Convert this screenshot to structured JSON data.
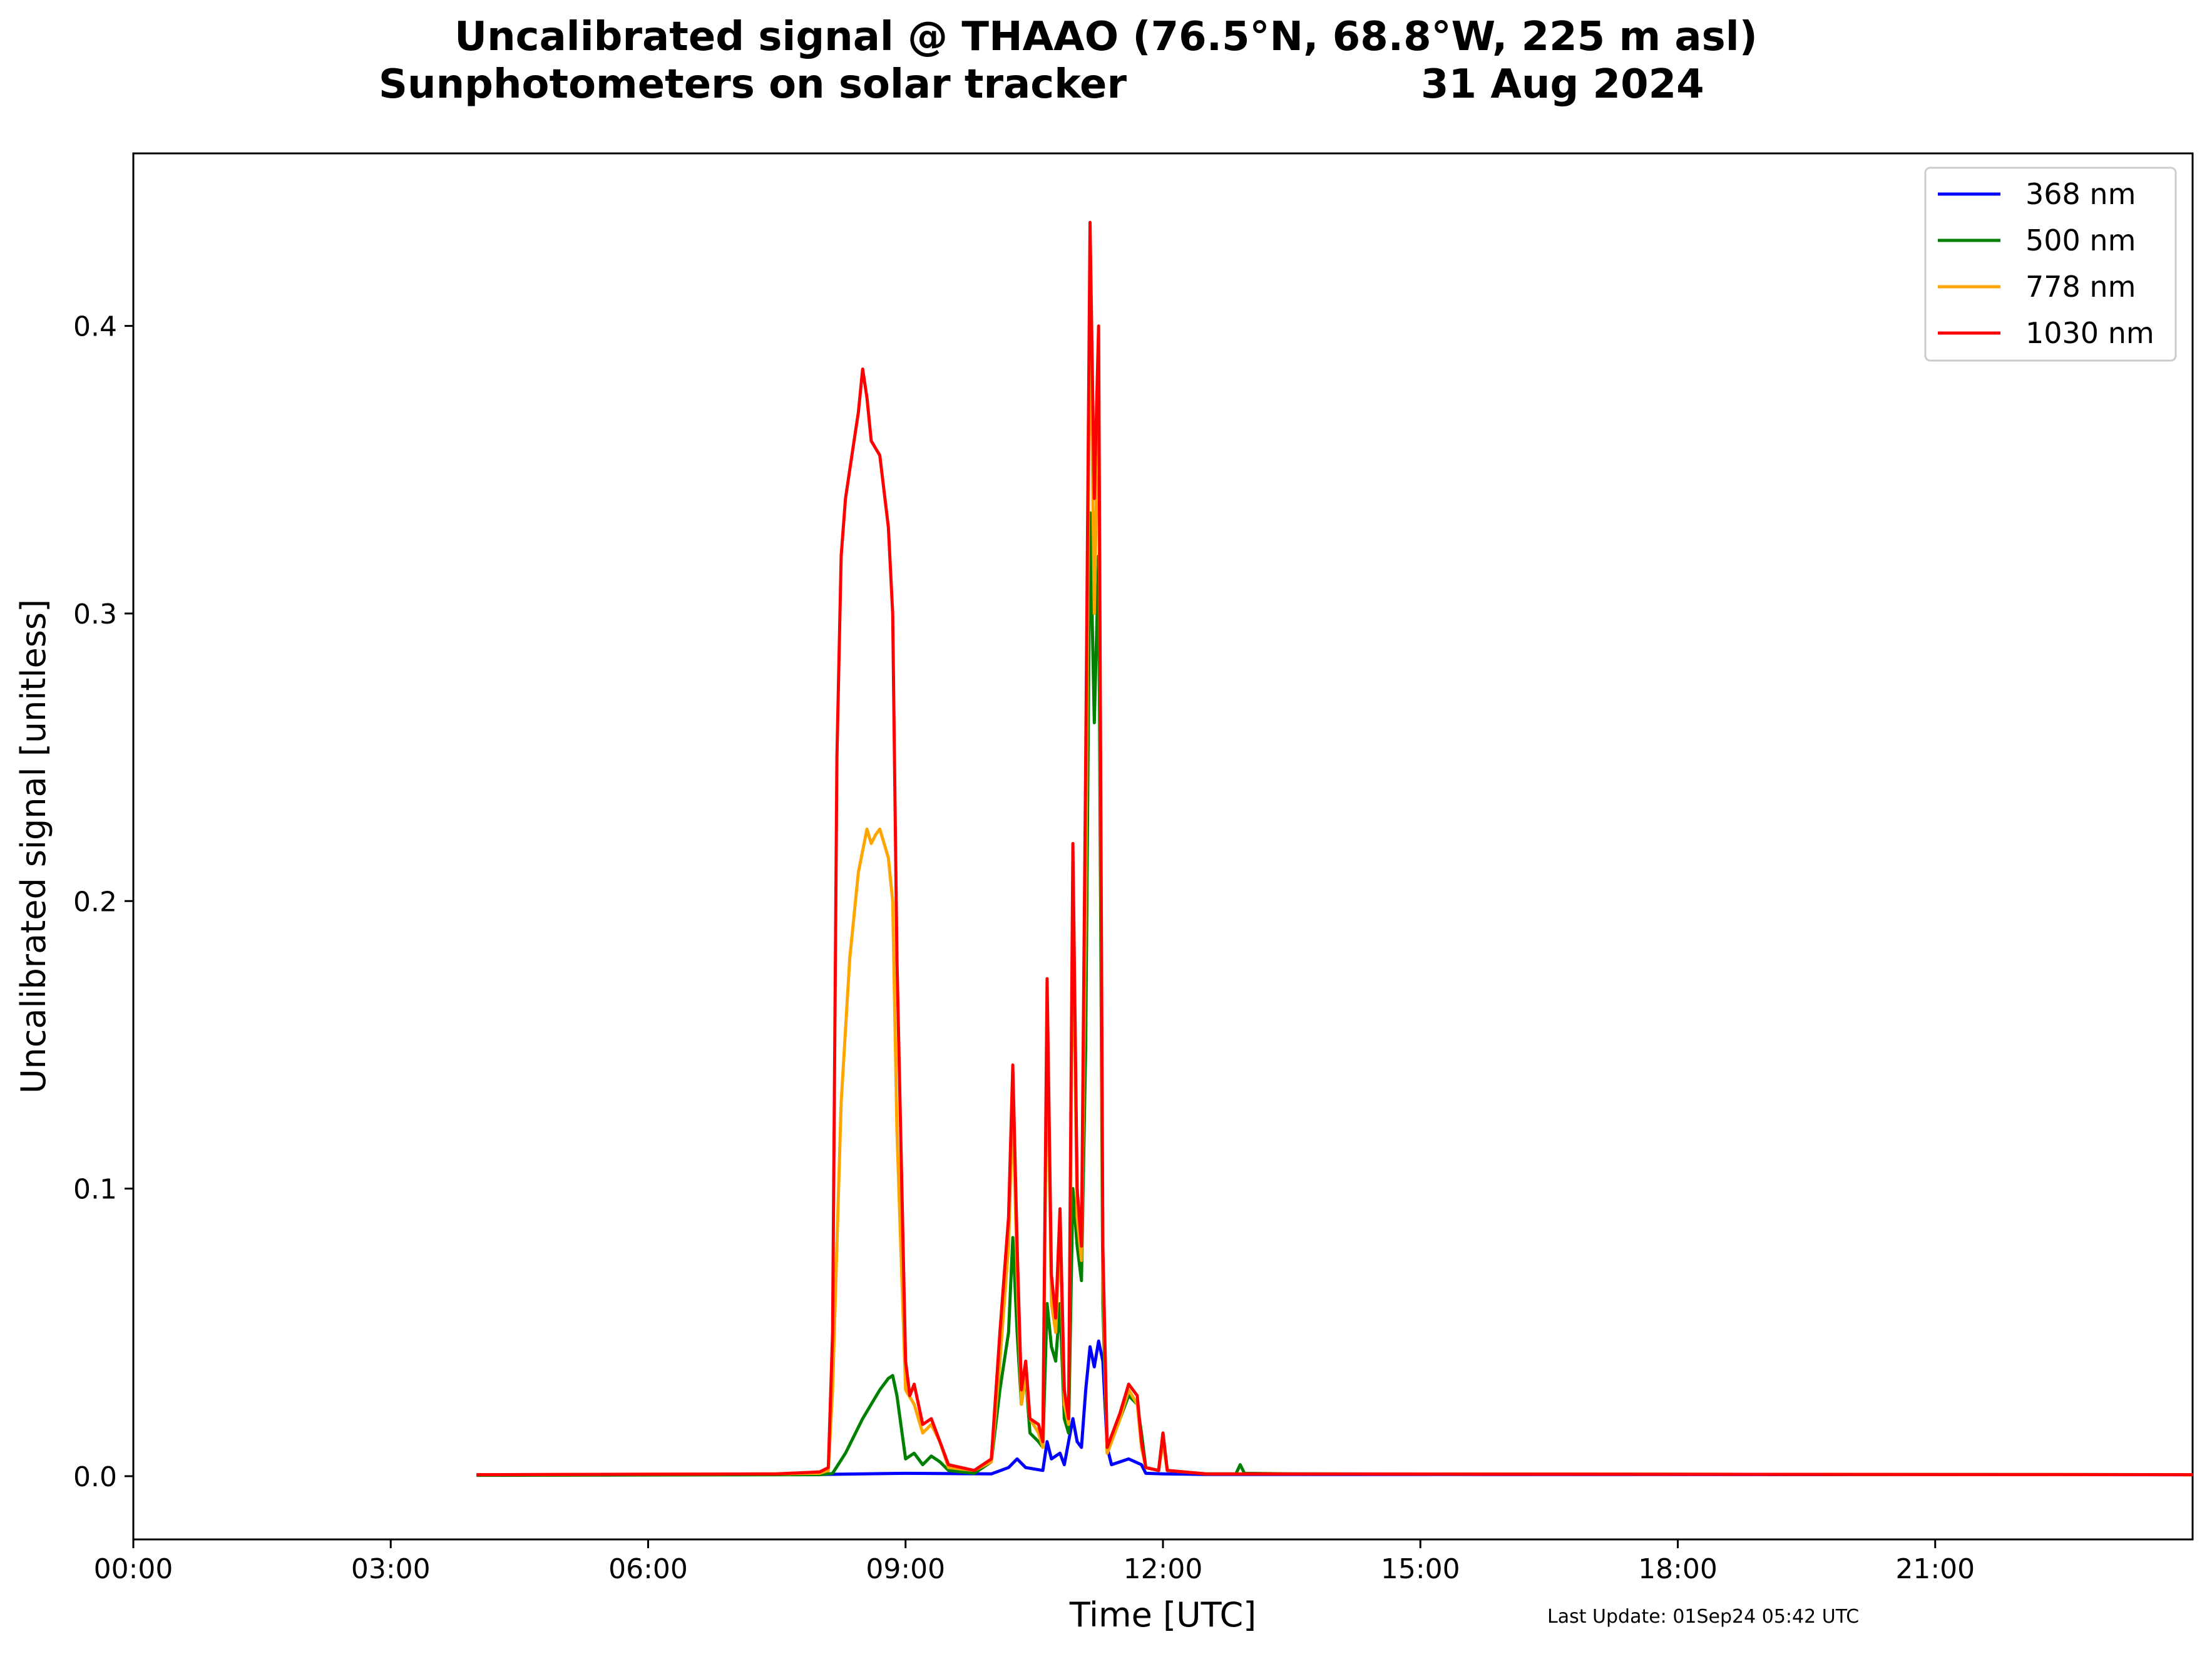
{
  "chart_data": {
    "type": "line",
    "title_line1": "Uncalibrated signal @ THAAO (76.5°N, 68.8°W, 225 m asl)",
    "title_line2_left": "Sunphotometers on solar tracker",
    "title_line2_right": "31 Aug 2024",
    "xlabel": "Time [UTC]",
    "ylabel": "Uncalibrated signal [unitless]",
    "footer": "Last Update: 01Sep24 05:42 UTC",
    "xlim": [
      0,
      24
    ],
    "ylim": [
      -0.022,
      0.46
    ],
    "x_ticks": [
      0,
      3,
      6,
      9,
      12,
      15,
      18,
      21
    ],
    "x_tick_labels": [
      "00:00",
      "03:00",
      "06:00",
      "09:00",
      "12:00",
      "15:00",
      "18:00",
      "21:00"
    ],
    "y_ticks": [
      0.0,
      0.1,
      0.2,
      0.3,
      0.4
    ],
    "y_tick_labels": [
      "0.0",
      "0.1",
      "0.2",
      "0.3",
      "0.4"
    ],
    "grid": false,
    "legend_position": "top-right",
    "series": [
      {
        "name": "368 nm",
        "color": "#0000ff",
        "points": [
          [
            4.0,
            0.0005
          ],
          [
            8.0,
            0.0006
          ],
          [
            9.0,
            0.001
          ],
          [
            10.0,
            0.0008
          ],
          [
            10.2,
            0.003
          ],
          [
            10.3,
            0.006
          ],
          [
            10.4,
            0.003
          ],
          [
            10.6,
            0.002
          ],
          [
            10.65,
            0.012
          ],
          [
            10.7,
            0.006
          ],
          [
            10.8,
            0.008
          ],
          [
            10.85,
            0.004
          ],
          [
            10.95,
            0.02
          ],
          [
            11.0,
            0.012
          ],
          [
            11.05,
            0.01
          ],
          [
            11.1,
            0.03
          ],
          [
            11.15,
            0.045
          ],
          [
            11.2,
            0.038
          ],
          [
            11.25,
            0.047
          ],
          [
            11.3,
            0.04
          ],
          [
            11.35,
            0.01
          ],
          [
            11.4,
            0.004
          ],
          [
            11.5,
            0.005
          ],
          [
            11.6,
            0.006
          ],
          [
            11.75,
            0.004
          ],
          [
            11.8,
            0.001
          ],
          [
            12.0,
            0.0008
          ],
          [
            12.5,
            0.0006
          ],
          [
            24.0,
            0.0005
          ]
        ]
      },
      {
        "name": "500 nm",
        "color": "#008000",
        "points": [
          [
            4.0,
            0.0003
          ],
          [
            8.0,
            0.0005
          ],
          [
            8.15,
            0.001
          ],
          [
            8.3,
            0.008
          ],
          [
            8.5,
            0.02
          ],
          [
            8.7,
            0.03
          ],
          [
            8.8,
            0.034
          ],
          [
            8.85,
            0.035
          ],
          [
            8.9,
            0.028
          ],
          [
            9.0,
            0.006
          ],
          [
            9.1,
            0.008
          ],
          [
            9.2,
            0.004
          ],
          [
            9.3,
            0.007
          ],
          [
            9.4,
            0.005
          ],
          [
            9.5,
            0.002
          ],
          [
            9.8,
            0.001
          ],
          [
            10.0,
            0.005
          ],
          [
            10.1,
            0.03
          ],
          [
            10.2,
            0.05
          ],
          [
            10.25,
            0.083
          ],
          [
            10.3,
            0.05
          ],
          [
            10.35,
            0.025
          ],
          [
            10.4,
            0.035
          ],
          [
            10.45,
            0.015
          ],
          [
            10.55,
            0.012
          ],
          [
            10.6,
            0.01
          ],
          [
            10.65,
            0.06
          ],
          [
            10.7,
            0.045
          ],
          [
            10.75,
            0.04
          ],
          [
            10.8,
            0.06
          ],
          [
            10.85,
            0.02
          ],
          [
            10.9,
            0.015
          ],
          [
            10.95,
            0.1
          ],
          [
            11.0,
            0.08
          ],
          [
            11.05,
            0.068
          ],
          [
            11.1,
            0.15
          ],
          [
            11.15,
            0.335
          ],
          [
            11.2,
            0.262
          ],
          [
            11.25,
            0.32
          ],
          [
            11.3,
            0.06
          ],
          [
            11.35,
            0.008
          ],
          [
            11.5,
            0.02
          ],
          [
            11.6,
            0.028
          ],
          [
            11.7,
            0.025
          ],
          [
            11.75,
            0.015
          ],
          [
            11.8,
            0.003
          ],
          [
            11.95,
            0.002
          ],
          [
            12.0,
            0.015
          ],
          [
            12.05,
            0.002
          ],
          [
            12.5,
            0.0008
          ],
          [
            12.85,
            0.0008
          ],
          [
            12.9,
            0.004
          ],
          [
            12.95,
            0.001
          ],
          [
            13.5,
            0.0008
          ],
          [
            24.0,
            0.0005
          ]
        ]
      },
      {
        "name": "778 nm",
        "color": "#ffa500",
        "points": [
          [
            4.0,
            0.0005
          ],
          [
            7.5,
            0.0008
          ],
          [
            8.0,
            0.001
          ],
          [
            8.1,
            0.002
          ],
          [
            8.15,
            0.03
          ],
          [
            8.25,
            0.13
          ],
          [
            8.35,
            0.18
          ],
          [
            8.45,
            0.21
          ],
          [
            8.55,
            0.225
          ],
          [
            8.6,
            0.22
          ],
          [
            8.65,
            0.223
          ],
          [
            8.7,
            0.225
          ],
          [
            8.75,
            0.22
          ],
          [
            8.8,
            0.215
          ],
          [
            8.85,
            0.2
          ],
          [
            8.9,
            0.12
          ],
          [
            9.0,
            0.03
          ],
          [
            9.1,
            0.025
          ],
          [
            9.2,
            0.015
          ],
          [
            9.3,
            0.018
          ],
          [
            9.4,
            0.012
          ],
          [
            9.5,
            0.003
          ],
          [
            9.8,
            0.002
          ],
          [
            10.0,
            0.005
          ],
          [
            10.1,
            0.04
          ],
          [
            10.2,
            0.08
          ],
          [
            10.25,
            0.13
          ],
          [
            10.3,
            0.07
          ],
          [
            10.35,
            0.025
          ],
          [
            10.4,
            0.035
          ],
          [
            10.45,
            0.02
          ],
          [
            10.55,
            0.015
          ],
          [
            10.6,
            0.01
          ],
          [
            10.65,
            0.16
          ],
          [
            10.7,
            0.06
          ],
          [
            10.75,
            0.05
          ],
          [
            10.8,
            0.085
          ],
          [
            10.85,
            0.025
          ],
          [
            10.9,
            0.018
          ],
          [
            10.95,
            0.2
          ],
          [
            11.0,
            0.09
          ],
          [
            11.05,
            0.075
          ],
          [
            11.1,
            0.2
          ],
          [
            11.15,
            0.42
          ],
          [
            11.2,
            0.3
          ],
          [
            11.25,
            0.38
          ],
          [
            11.3,
            0.07
          ],
          [
            11.35,
            0.008
          ],
          [
            11.5,
            0.02
          ],
          [
            11.6,
            0.03
          ],
          [
            11.7,
            0.025
          ],
          [
            11.75,
            0.01
          ],
          [
            11.8,
            0.003
          ],
          [
            11.95,
            0.002
          ],
          [
            12.0,
            0.012
          ],
          [
            12.05,
            0.002
          ],
          [
            12.5,
            0.0008
          ],
          [
            24.0,
            0.0005
          ]
        ]
      },
      {
        "name": "1030 nm",
        "color": "#ff0000",
        "points": [
          [
            4.0,
            0.0005
          ],
          [
            7.5,
            0.0008
          ],
          [
            8.0,
            0.0015
          ],
          [
            8.1,
            0.003
          ],
          [
            8.15,
            0.05
          ],
          [
            8.2,
            0.25
          ],
          [
            8.25,
            0.32
          ],
          [
            8.3,
            0.34
          ],
          [
            8.4,
            0.36
          ],
          [
            8.45,
            0.37
          ],
          [
            8.5,
            0.385
          ],
          [
            8.55,
            0.375
          ],
          [
            8.6,
            0.36
          ],
          [
            8.7,
            0.355
          ],
          [
            8.8,
            0.33
          ],
          [
            8.85,
            0.3
          ],
          [
            8.9,
            0.18
          ],
          [
            9.0,
            0.04
          ],
          [
            9.05,
            0.028
          ],
          [
            9.1,
            0.032
          ],
          [
            9.2,
            0.018
          ],
          [
            9.3,
            0.02
          ],
          [
            9.4,
            0.012
          ],
          [
            9.5,
            0.004
          ],
          [
            9.8,
            0.002
          ],
          [
            10.0,
            0.006
          ],
          [
            10.1,
            0.05
          ],
          [
            10.2,
            0.09
          ],
          [
            10.25,
            0.143
          ],
          [
            10.3,
            0.08
          ],
          [
            10.35,
            0.03
          ],
          [
            10.4,
            0.04
          ],
          [
            10.45,
            0.02
          ],
          [
            10.55,
            0.018
          ],
          [
            10.6,
            0.012
          ],
          [
            10.65,
            0.173
          ],
          [
            10.7,
            0.07
          ],
          [
            10.75,
            0.055
          ],
          [
            10.8,
            0.093
          ],
          [
            10.85,
            0.03
          ],
          [
            10.9,
            0.02
          ],
          [
            10.95,
            0.22
          ],
          [
            11.0,
            0.1
          ],
          [
            11.05,
            0.08
          ],
          [
            11.1,
            0.25
          ],
          [
            11.15,
            0.436
          ],
          [
            11.2,
            0.34
          ],
          [
            11.25,
            0.4
          ],
          [
            11.3,
            0.08
          ],
          [
            11.35,
            0.01
          ],
          [
            11.5,
            0.022
          ],
          [
            11.6,
            0.032
          ],
          [
            11.7,
            0.028
          ],
          [
            11.75,
            0.012
          ],
          [
            11.8,
            0.003
          ],
          [
            11.95,
            0.002
          ],
          [
            12.0,
            0.015
          ],
          [
            12.05,
            0.002
          ],
          [
            12.5,
            0.0008
          ],
          [
            24.0,
            0.0005
          ]
        ]
      }
    ]
  }
}
